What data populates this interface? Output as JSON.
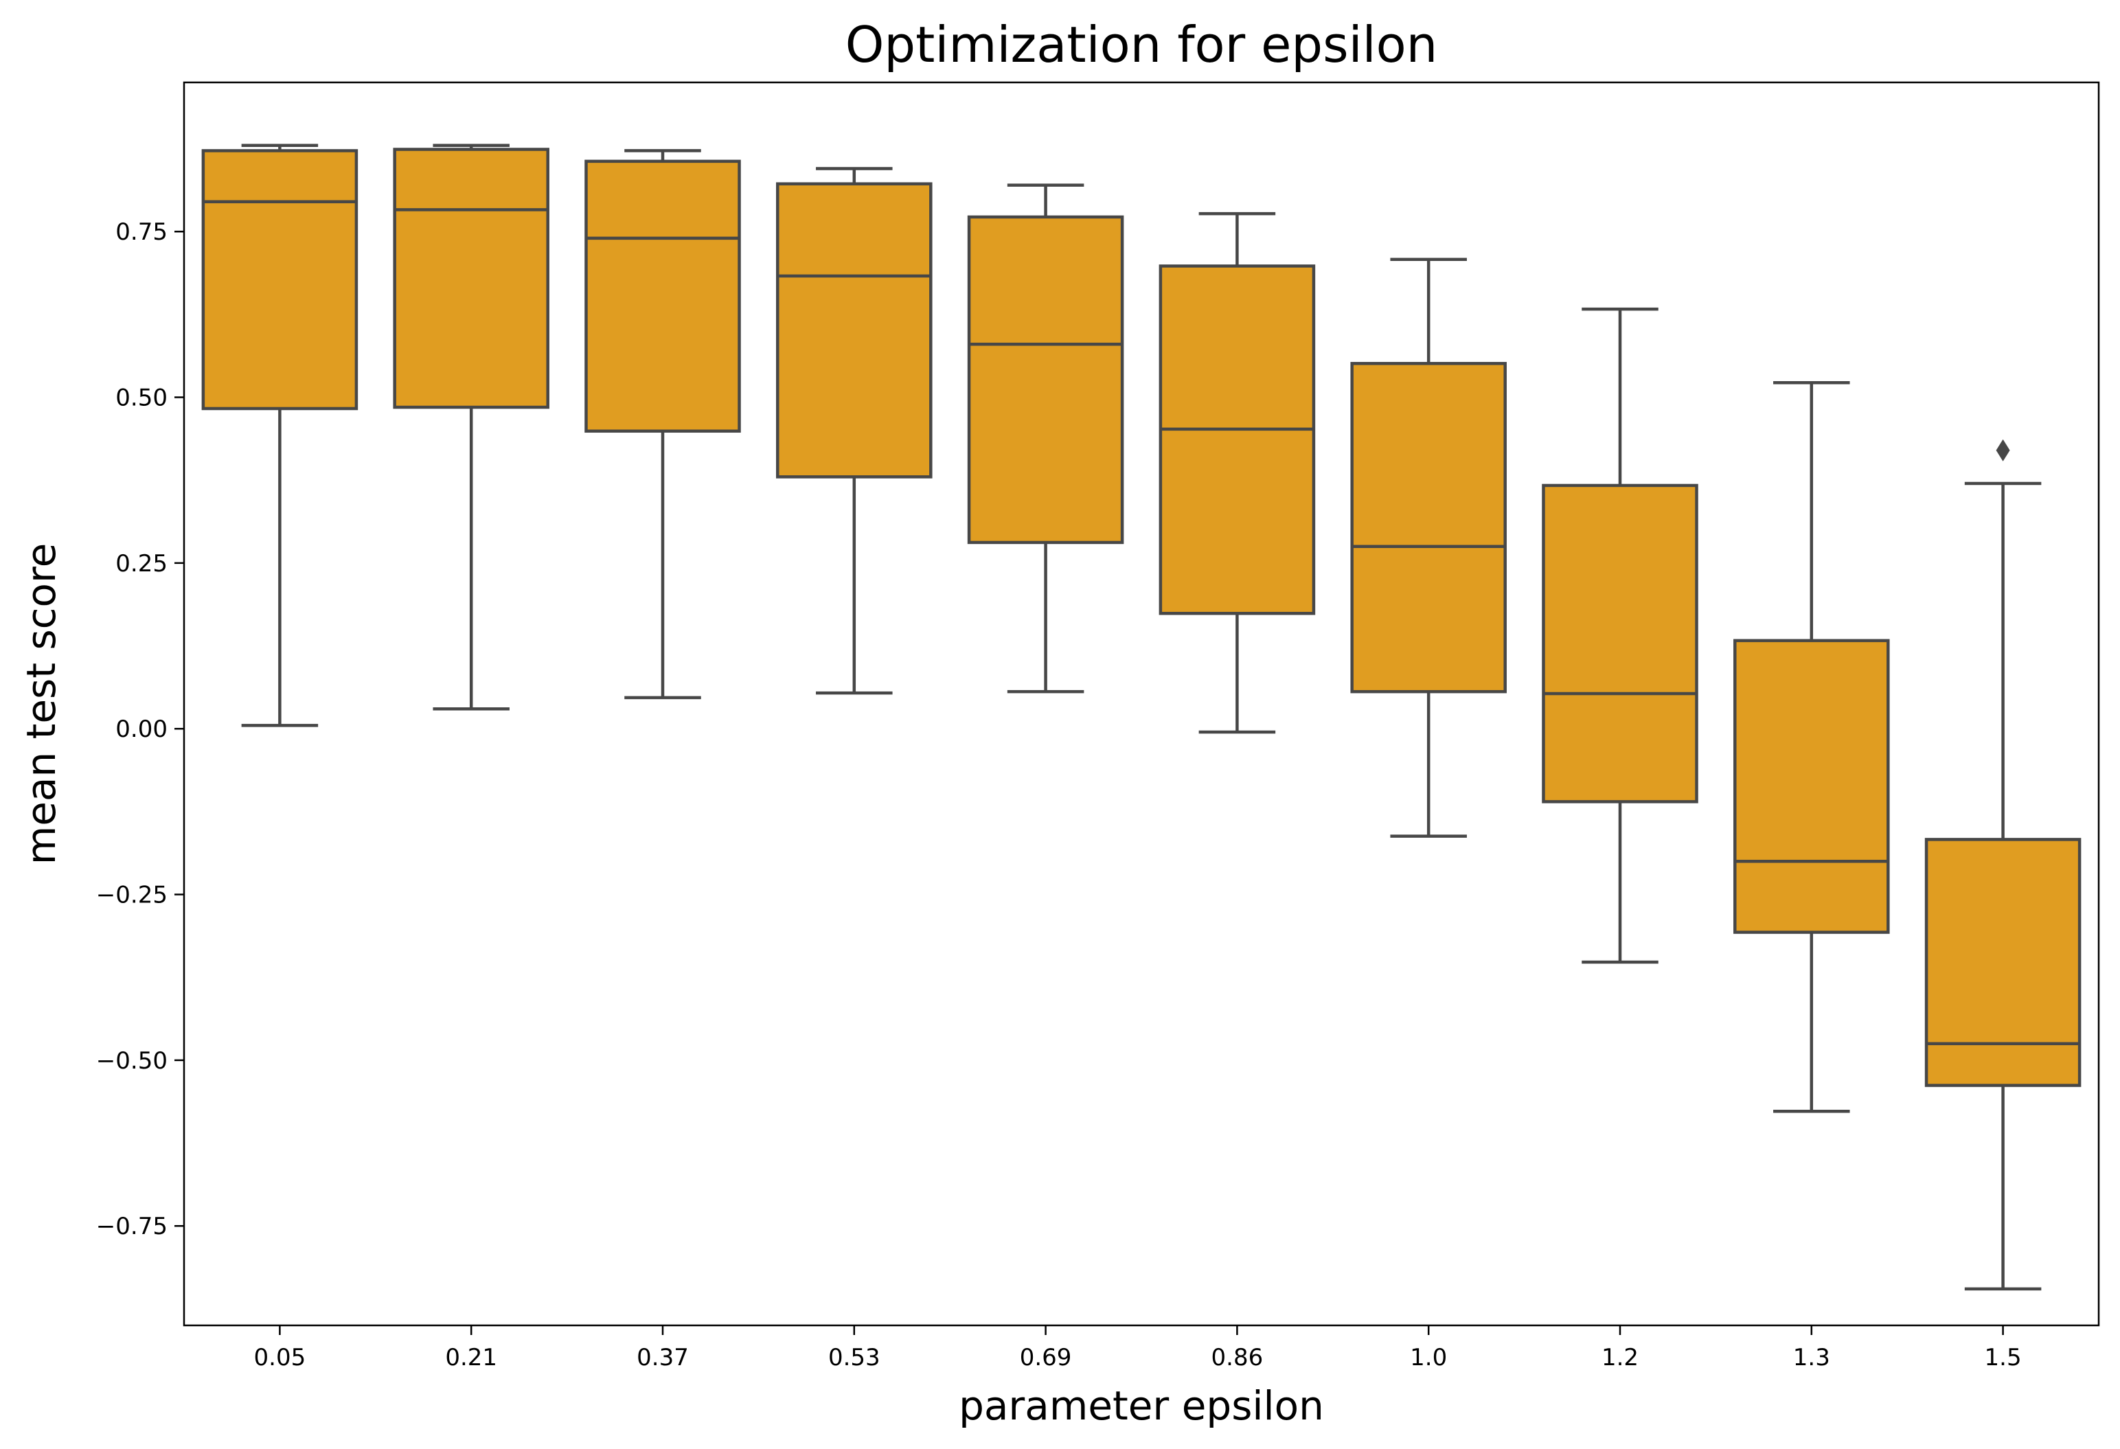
{
  "chart_data": {
    "type": "box",
    "title": "Optimization for epsilon",
    "xlabel": "parameter epsilon",
    "ylabel": "mean test score",
    "categories": [
      "0.05",
      "0.21",
      "0.37",
      "0.53",
      "0.69",
      "0.86",
      "1.0",
      "1.2",
      "1.3",
      "1.5"
    ],
    "boxes": [
      {
        "whisker_low": 0.005,
        "q1": 0.483,
        "median": 0.795,
        "q3": 0.872,
        "whisker_high": 0.88,
        "outliers": []
      },
      {
        "whisker_low": 0.03,
        "q1": 0.485,
        "median": 0.783,
        "q3": 0.874,
        "whisker_high": 0.88,
        "outliers": []
      },
      {
        "whisker_low": 0.047,
        "q1": 0.449,
        "median": 0.74,
        "q3": 0.856,
        "whisker_high": 0.872,
        "outliers": []
      },
      {
        "whisker_low": 0.054,
        "q1": 0.38,
        "median": 0.683,
        "q3": 0.822,
        "whisker_high": 0.845,
        "outliers": []
      },
      {
        "whisker_low": 0.056,
        "q1": 0.281,
        "median": 0.58,
        "q3": 0.772,
        "whisker_high": 0.82,
        "outliers": []
      },
      {
        "whisker_low": -0.005,
        "q1": 0.174,
        "median": 0.452,
        "q3": 0.698,
        "whisker_high": 0.777,
        "outliers": []
      },
      {
        "whisker_low": -0.162,
        "q1": 0.056,
        "median": 0.275,
        "q3": 0.551,
        "whisker_high": 0.708,
        "outliers": []
      },
      {
        "whisker_low": -0.352,
        "q1": -0.11,
        "median": 0.053,
        "q3": 0.367,
        "whisker_high": 0.633,
        "outliers": []
      },
      {
        "whisker_low": -0.577,
        "q1": -0.307,
        "median": -0.2,
        "q3": 0.133,
        "whisker_high": 0.522,
        "outliers": []
      },
      {
        "whisker_low": -0.845,
        "q1": -0.538,
        "median": -0.475,
        "q3": -0.167,
        "whisker_high": 0.37,
        "outliers": [
          0.42
        ]
      }
    ],
    "y_ticks": [
      {
        "value": 0.75,
        "label": "0.75"
      },
      {
        "value": 0.5,
        "label": "0.50"
      },
      {
        "value": 0.25,
        "label": "0.25"
      },
      {
        "value": 0.0,
        "label": "0.00"
      },
      {
        "value": -0.25,
        "label": "−0.25"
      },
      {
        "value": -0.5,
        "label": "−0.50"
      },
      {
        "value": -0.75,
        "label": "−0.75"
      }
    ],
    "ylim": [
      -0.9,
      0.975
    ],
    "grid": false,
    "colors": {
      "box_fill": "#e09d21",
      "box_edge": "#474747"
    }
  }
}
